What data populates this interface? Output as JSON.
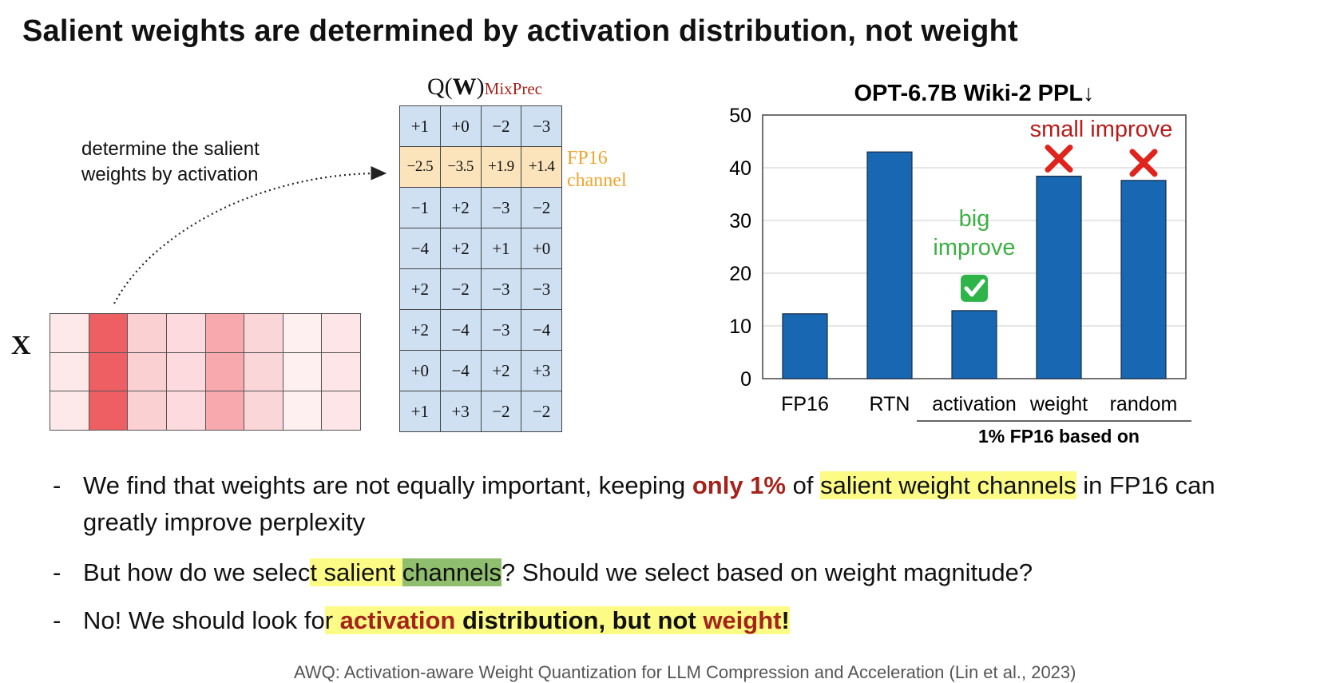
{
  "slide": {
    "title": "Salient weights are determined by activation distribution, not weight"
  },
  "diagram": {
    "annotation_line1": "determine the salient",
    "annotation_line2": "weights by activation",
    "x_label": "X",
    "qw_prefix": "Q(",
    "qw_w": "W",
    "qw_suffix": ")",
    "qw_subscript": "MixPrec",
    "fp16_line1": "FP16",
    "fp16_line2": "channel",
    "x_matrix_colors": [
      "#fde8ea",
      "#ee5f63",
      "#fad0d3",
      "#fcdadd",
      "#f7a9ae",
      "#fbd6d9",
      "#fef0f1",
      "#fde5e8"
    ],
    "weight_matrix": [
      [
        "+1",
        "+0",
        "−2",
        "−3"
      ],
      [
        "−2.5",
        "−3.5",
        "+1.9",
        "+1.4"
      ],
      [
        "−1",
        "+2",
        "−3",
        "−2"
      ],
      [
        "−4",
        "+2",
        "+1",
        "+0"
      ],
      [
        "+2",
        "−2",
        "−3",
        "−3"
      ],
      [
        "+2",
        "−4",
        "−3",
        "−4"
      ],
      [
        "+0",
        "−4",
        "+2",
        "+3"
      ],
      [
        "+1",
        "+3",
        "−2",
        "−2"
      ]
    ]
  },
  "chart_data": {
    "type": "bar",
    "title": "OPT-6.7B Wiki-2 PPL↓",
    "categories": [
      "FP16",
      "RTN",
      "activation",
      "weight",
      "random"
    ],
    "values": [
      12.3,
      43.0,
      12.9,
      38.4,
      37.6
    ],
    "ylim": [
      0,
      50
    ],
    "yticks": [
      "0",
      "10",
      "20",
      "30",
      "40",
      "50"
    ],
    "grid": true,
    "bar_color": "#1767b2",
    "group_label": "1% FP16 based on",
    "annotations": {
      "big_improve_line1": "big",
      "big_improve_line2": "improve",
      "small_improve": "small improve",
      "check_icon": "check-mark-icon",
      "cross_icon": "cross-mark-icon"
    }
  },
  "bullets": {
    "b1_a": "We find that weights are not equally important, keeping ",
    "b1_b": "only 1%",
    "b1_c": " of ",
    "b1_d": "salient weight channels",
    "b1_e": " in FP16 can",
    "b1_f": "greatly improve perplexity",
    "b2_a": "But how do we selec",
    "b2_b": "t salient ",
    "b2_c": "channels",
    "b2_d": "? Should we select based on weight magnitude?",
    "b3_a": "No! We should look fo",
    "b3_b": "r ",
    "b3_c": "activation",
    "b3_d": " distribution, but not ",
    "b3_e": "weight",
    "b3_f": "!"
  },
  "citation": "AWQ: Activation-aware Weight Quantization for LLM Compression and Acceleration (Lin et al., 2023)"
}
